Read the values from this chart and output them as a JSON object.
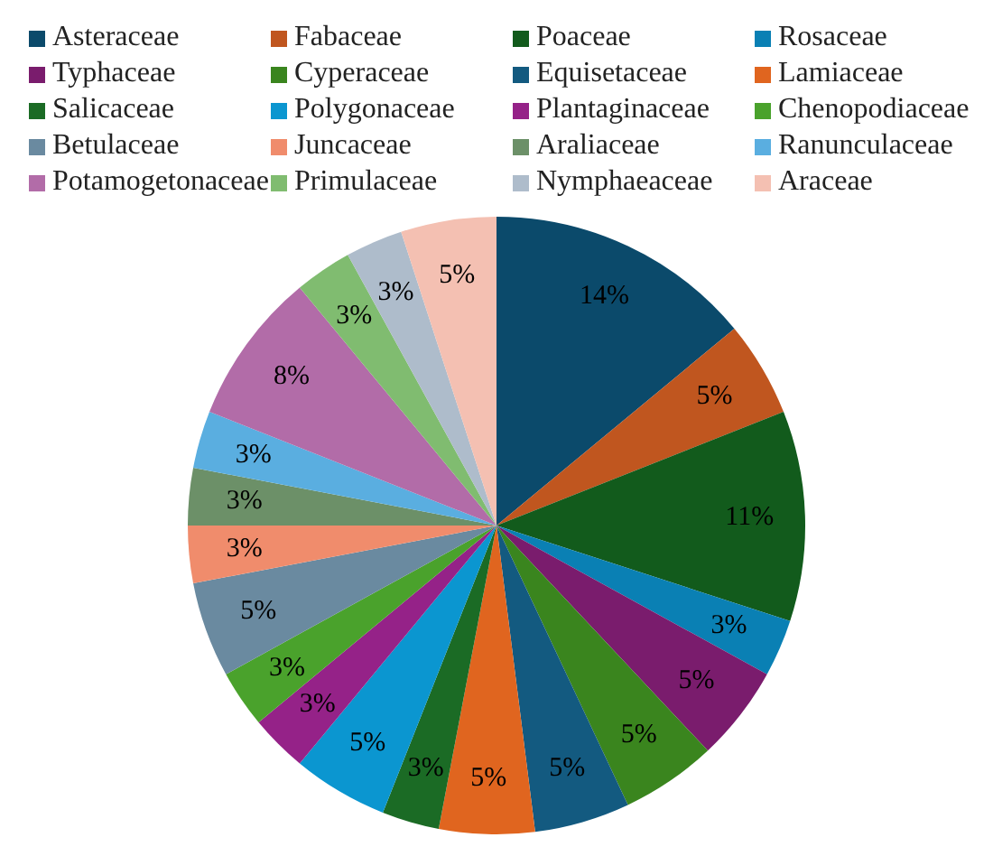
{
  "chart_data": {
    "type": "pie",
    "categories": [
      "Asteraceae",
      "Fabaceae",
      "Poaceae",
      "Rosaceae",
      "Typhaceae",
      "Cyperaceae",
      "Equisetaceae",
      "Lamiaceae",
      "Salicaceae",
      "Polygonaceae",
      "Plantaginaceae",
      "Chenopodiaceae",
      "Betulaceae",
      "Juncaceae",
      "Araliaceae",
      "Ranunculaceae",
      "Potamogetonaceae",
      "Primulaceae",
      "Nymphaeaceae",
      "Araceae"
    ],
    "values": [
      14,
      5,
      11,
      3,
      5,
      5,
      5,
      5,
      3,
      5,
      3,
      3,
      5,
      3,
      3,
      3,
      8,
      3,
      3,
      5
    ],
    "value_labels": [
      "14%",
      "5%",
      "11%",
      "3%",
      "5%",
      "5%",
      "5%",
      "5%",
      "3%",
      "5%",
      "3%",
      "3%",
      "5%",
      "3%",
      "3%",
      "3%",
      "8%",
      "3%",
      "3%",
      "5%"
    ],
    "colors": [
      "#0b4a6b",
      "#c0561f",
      "#125b1c",
      "#0a80b4",
      "#7a1c6d",
      "#3a851e",
      "#135a80",
      "#e0651f",
      "#1b6b25",
      "#0b96d0",
      "#952288",
      "#4aa22c",
      "#6a8aa0",
      "#f08c6c",
      "#6c9068",
      "#5aaee0",
      "#b26ca8",
      "#80bc70",
      "#aebccb",
      "#f4c0b2"
    ],
    "legend": "top"
  }
}
